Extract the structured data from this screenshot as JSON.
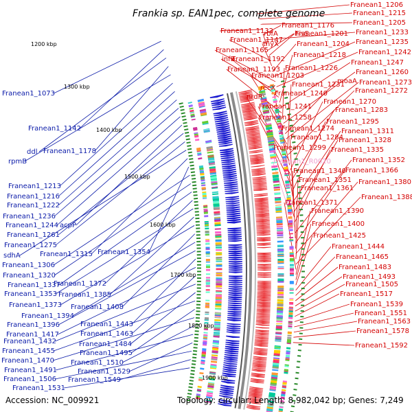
{
  "title": "Frankia sp. EAN1pec, complete genome",
  "footer": {
    "accession": "Accession: NC_009921",
    "summary": "Topology: circular; Length: 8,982,042 bp; Genes: 7,249"
  },
  "colors": {
    "forward_genes": "#e8262a",
    "reverse_genes": "#1a1ad0",
    "left_labels": "#0a1aa8",
    "right_labels": "#d40000",
    "rna_label": "#f0a0d0",
    "backbone": "#8a8a8a",
    "tick": "#2a8a2a"
  },
  "kbp_ticks": [
    "1200 kbp",
    "1300 kbp",
    "1400 kbp",
    "1500 kbp",
    "1600 kbp",
    "1700 kbp",
    "1800 kbp",
    "1900 kbp"
  ],
  "left_labels": [
    "Franean1_1073",
    "Franean1_1142",
    "ddl",
    "Franean1_1178",
    "rpmB",
    "Franean1_1213",
    "Franean1_1216",
    "Franean1_1222",
    "Franean1_1236",
    "Franean1_1244",
    "acpP",
    "Franean1_1261",
    "Franean1_1275",
    "sdhA",
    "Franean1_1315",
    "Franean1_1354",
    "Franean1_1306",
    "Franean1_1320",
    "Franean1_1337",
    "Franean1_1372",
    "Franean1_1353",
    "Franean1_1385",
    "Franean1_1373",
    "Franean1_1408",
    "Franean1_1394",
    "Franean1_1396",
    "Franean1_1443",
    "Franean1_1417",
    "Franean1_1463",
    "Franean1_1432",
    "Franean1_1484",
    "Franean1_1455",
    "Franean1_1495",
    "Franean1_1470",
    "Franean1_1510",
    "Franean1_1491",
    "Franean1_1529",
    "Franean1_1506",
    "Franean1_1549",
    "Franean1_1531"
  ],
  "right_labels": [
    "Franean1_1206",
    "Franean1_1215",
    "Franean1_1205",
    "Franean1_1132",
    "Franean1_1176",
    "Franean1_1233",
    "rbfA",
    "hisS",
    "Franean1_1201",
    "Franean1_1147",
    "thyX",
    "Franean1_1204",
    "Franean1_1235",
    "Franean1_1165",
    "Franean1_1242",
    "infB",
    "Franean1_1192",
    "Franean1_1218",
    "Franean1_1247",
    "Franean1_1193",
    "Franean1_1226",
    "Franean1_1260",
    "Franean1_1203",
    "moaA",
    "Franean1_1273",
    "recX",
    "Franean1_1231",
    "Franean1_1272",
    "nrdR",
    "Franean1_1240",
    "Franean1_1270",
    "Franean1_1241",
    "Franean1_1283",
    "Franean1_1258",
    "Franean1_1295",
    "Franean1_1274",
    "Franean1_1311",
    "Franean1_1284",
    "Franean1_1328",
    "Franean1_1299",
    "Franean1_1335",
    "Franean1_R0020",
    "Franean1_1352",
    "Franean1_1340",
    "Franean1_1366",
    "Franean1_1351",
    "Franean1_1380",
    "Franean1_1361",
    "Franean1_1388",
    "Franean1_1371",
    "Franean1_1390",
    "Franean1_1400",
    "Franean1_1425",
    "Franean1_1444",
    "Franean1_1465",
    "Franean1_1483",
    "Franean1_1493",
    "Franean1_1505",
    "Franean1_1517",
    "Franean1_1539",
    "Franean1_1551",
    "Franean1_1563",
    "Franean1_1578",
    "Franean1_1592"
  ]
}
